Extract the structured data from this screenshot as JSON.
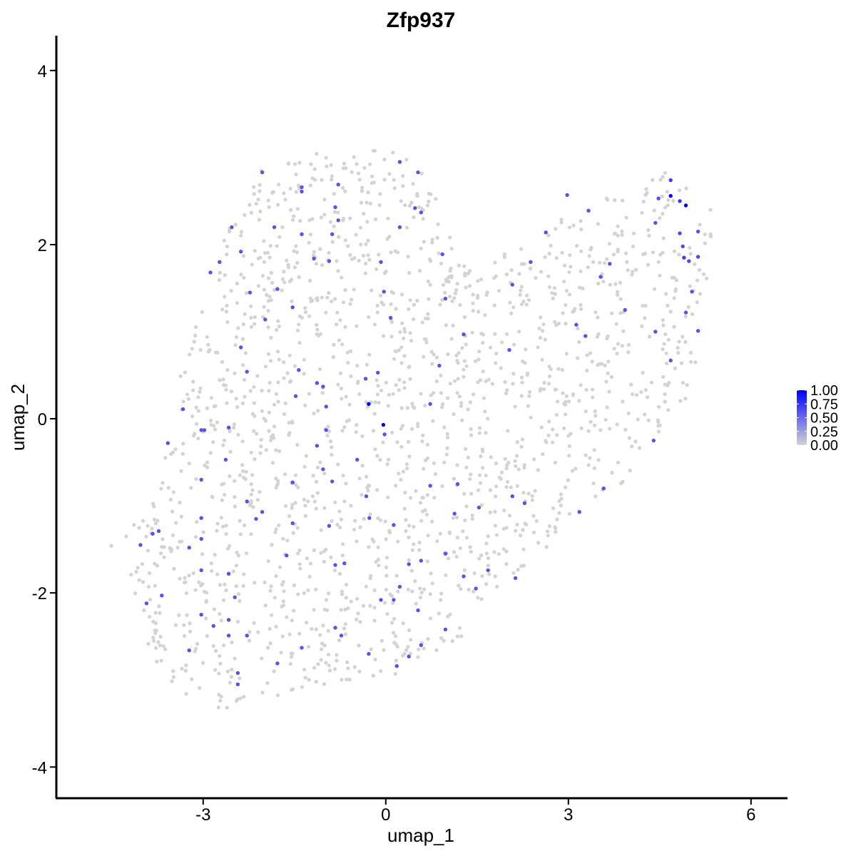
{
  "chart_data": {
    "type": "scatter",
    "title": "Zfp937",
    "xlabel": "umap_1",
    "ylabel": "umap_2",
    "xlim": [
      -5.4,
      6.6
    ],
    "ylim": [
      -4.35,
      4.4
    ],
    "x_ticks": [
      -3,
      0,
      3,
      6
    ],
    "x_tick_labels": [
      "-3",
      "0",
      "3",
      "6"
    ],
    "y_ticks": [
      -4,
      -2,
      0,
      2,
      4
    ],
    "y_tick_labels": [
      "-4",
      "-2",
      "0",
      "2",
      "4"
    ],
    "grid": false,
    "legend": {
      "placement": "right",
      "type": "colorbar",
      "min": 0,
      "max": 1,
      "ticks": [
        0,
        0.25,
        0.5,
        0.75,
        1
      ],
      "tick_labels": [
        "0.00",
        "0.25",
        "0.50",
        "0.75",
        "1.00"
      ],
      "color_low": "#d3d3d3",
      "color_high": "#0000ff"
    },
    "colors": {
      "low": "#d3d3d3",
      "high": "#0000ff"
    },
    "background_cells_estimated": 1700,
    "expressing_cells": [
      {
        "x": 4.68,
        "y": 2.56,
        "v": 1.0
      },
      {
        "x": 4.93,
        "y": 2.45,
        "v": 1.0
      },
      {
        "x": -0.28,
        "y": 0.17,
        "v": 1.0
      },
      {
        "x": -0.04,
        "y": -0.07,
        "v": 1.0
      },
      {
        "x": 4.83,
        "y": 2.5,
        "v": 0.75
      },
      {
        "x": 4.68,
        "y": 2.74,
        "v": 0.7
      },
      {
        "x": 4.9,
        "y": 1.85,
        "v": 0.7
      },
      {
        "x": 4.83,
        "y": 2.13,
        "v": 0.65
      },
      {
        "x": 4.88,
        "y": 1.98,
        "v": 0.65
      },
      {
        "x": 4.98,
        "y": 1.81,
        "v": 0.65
      },
      {
        "x": 5.13,
        "y": 1.86,
        "v": 0.65
      },
      {
        "x": 5.13,
        "y": 2.15,
        "v": 0.6
      },
      {
        "x": 4.43,
        "y": 2.25,
        "v": 0.6
      },
      {
        "x": 4.48,
        "y": 2.53,
        "v": 0.6
      },
      {
        "x": 4.43,
        "y": 1.0,
        "v": 0.6
      },
      {
        "x": 4.68,
        "y": 0.67,
        "v": 0.6
      },
      {
        "x": 4.93,
        "y": 1.22,
        "v": 0.6
      },
      {
        "x": 5.03,
        "y": 1.46,
        "v": 0.6
      },
      {
        "x": 5.13,
        "y": 1.01,
        "v": 0.6
      },
      {
        "x": 4.4,
        "y": -0.25,
        "v": 0.6
      },
      {
        "x": 3.93,
        "y": 1.25,
        "v": 0.6
      },
      {
        "x": 3.68,
        "y": 1.78,
        "v": 0.6
      },
      {
        "x": 3.53,
        "y": 1.63,
        "v": 0.6
      },
      {
        "x": 3.33,
        "y": 2.39,
        "v": 0.6
      },
      {
        "x": 3.13,
        "y": 1.08,
        "v": 0.6
      },
      {
        "x": 3.28,
        "y": 0.95,
        "v": 0.6
      },
      {
        "x": 3.58,
        "y": -0.8,
        "v": 0.6
      },
      {
        "x": 3.18,
        "y": -1.07,
        "v": 0.6
      },
      {
        "x": 2.98,
        "y": 2.57,
        "v": 0.6
      },
      {
        "x": 2.63,
        "y": 2.14,
        "v": 0.6
      },
      {
        "x": 2.38,
        "y": 1.8,
        "v": 0.6
      },
      {
        "x": 2.08,
        "y": 1.54,
        "v": 0.6
      },
      {
        "x": 2.03,
        "y": 0.79,
        "v": 0.6
      },
      {
        "x": 2.08,
        "y": -0.89,
        "v": 0.6
      },
      {
        "x": 2.28,
        "y": -0.97,
        "v": 0.6
      },
      {
        "x": 2.13,
        "y": -1.83,
        "v": 0.6
      },
      {
        "x": 1.68,
        "y": -1.74,
        "v": 0.6
      },
      {
        "x": 1.48,
        "y": -1.95,
        "v": 0.6
      },
      {
        "x": 1.53,
        "y": -1.02,
        "v": 0.6
      },
      {
        "x": 1.28,
        "y": -1.81,
        "v": 0.6
      },
      {
        "x": 1.13,
        "y": -1.09,
        "v": 0.6
      },
      {
        "x": 1.18,
        "y": -0.75,
        "v": 0.6
      },
      {
        "x": 0.98,
        "y": -1.55,
        "v": 0.6
      },
      {
        "x": 0.98,
        "y": -2.42,
        "v": 0.6
      },
      {
        "x": 0.73,
        "y": -0.77,
        "v": 0.6
      },
      {
        "x": 0.58,
        "y": -1.63,
        "v": 0.6
      },
      {
        "x": 0.53,
        "y": -2.2,
        "v": 0.6
      },
      {
        "x": 0.58,
        "y": -2.6,
        "v": 0.6
      },
      {
        "x": 0.38,
        "y": -2.73,
        "v": 0.6
      },
      {
        "x": 0.18,
        "y": -2.84,
        "v": 0.6
      },
      {
        "x": 0.38,
        "y": -1.67,
        "v": 0.6
      },
      {
        "x": 0.23,
        "y": -1.93,
        "v": 0.6
      },
      {
        "x": 0.13,
        "y": -2.08,
        "v": 0.6
      },
      {
        "x": 0.13,
        "y": -1.22,
        "v": 0.6
      },
      {
        "x": -0.27,
        "y": -1.14,
        "v": 0.6
      },
      {
        "x": -0.32,
        "y": -0.89,
        "v": 0.6
      },
      {
        "x": -0.47,
        "y": -0.47,
        "v": 0.6
      },
      {
        "x": -0.02,
        "y": -0.18,
        "v": 0.6
      },
      {
        "x": 0.73,
        "y": 0.17,
        "v": 0.6
      },
      {
        "x": 0.88,
        "y": 0.61,
        "v": 0.6
      },
      {
        "x": 1.28,
        "y": 0.97,
        "v": 0.6
      },
      {
        "x": 0.98,
        "y": 1.38,
        "v": 0.6
      },
      {
        "x": 0.93,
        "y": 1.89,
        "v": 0.6
      },
      {
        "x": 0.58,
        "y": 2.37,
        "v": 0.6
      },
      {
        "x": 0.48,
        "y": 2.42,
        "v": 0.6
      },
      {
        "x": 0.23,
        "y": 2.2,
        "v": 0.6
      },
      {
        "x": 0.53,
        "y": 2.83,
        "v": 0.6
      },
      {
        "x": 0.23,
        "y": 2.95,
        "v": 0.6
      },
      {
        "x": 0.08,
        "y": 1.16,
        "v": 0.6
      },
      {
        "x": -0.03,
        "y": 1.46,
        "v": 0.6
      },
      {
        "x": -0.08,
        "y": 1.8,
        "v": 0.6
      },
      {
        "x": -0.33,
        "y": 0.46,
        "v": 0.6
      },
      {
        "x": -0.13,
        "y": 0.53,
        "v": 0.6
      },
      {
        "x": -0.78,
        "y": 2.69,
        "v": 0.6
      },
      {
        "x": -0.83,
        "y": 2.43,
        "v": 0.6
      },
      {
        "x": -0.78,
        "y": 2.28,
        "v": 0.6
      },
      {
        "x": -0.88,
        "y": 2.12,
        "v": 0.6
      },
      {
        "x": -0.93,
        "y": 1.81,
        "v": 0.6
      },
      {
        "x": -1.18,
        "y": 1.84,
        "v": 0.6
      },
      {
        "x": -1.38,
        "y": 2.12,
        "v": 0.6
      },
      {
        "x": -1.38,
        "y": 2.61,
        "v": 0.6
      },
      {
        "x": -1.38,
        "y": 2.66,
        "v": 0.6
      },
      {
        "x": -1.83,
        "y": 2.2,
        "v": 0.6
      },
      {
        "x": -2.03,
        "y": 2.83,
        "v": 0.6
      },
      {
        "x": -1.78,
        "y": 1.49,
        "v": 0.6
      },
      {
        "x": -1.53,
        "y": 1.28,
        "v": 0.6
      },
      {
        "x": -1.98,
        "y": 1.14,
        "v": 0.6
      },
      {
        "x": -2.38,
        "y": 1.92,
        "v": 0.6
      },
      {
        "x": -2.53,
        "y": 2.2,
        "v": 0.6
      },
      {
        "x": -2.73,
        "y": 1.8,
        "v": 0.6
      },
      {
        "x": -2.88,
        "y": 1.68,
        "v": 0.6
      },
      {
        "x": -2.23,
        "y": 1.45,
        "v": 0.6
      },
      {
        "x": -2.38,
        "y": 0.82,
        "v": 0.6
      },
      {
        "x": -2.28,
        "y": 0.54,
        "v": 0.6
      },
      {
        "x": -1.43,
        "y": 0.56,
        "v": 0.6
      },
      {
        "x": -1.13,
        "y": 0.41,
        "v": 0.6
      },
      {
        "x": -1.03,
        "y": 0.37,
        "v": 0.6
      },
      {
        "x": -1.48,
        "y": 0.26,
        "v": 0.6
      },
      {
        "x": -0.98,
        "y": 0.14,
        "v": 0.6
      },
      {
        "x": -0.98,
        "y": -0.13,
        "v": 0.6
      },
      {
        "x": -1.13,
        "y": -0.31,
        "v": 0.6
      },
      {
        "x": -1.03,
        "y": -0.58,
        "v": 0.6
      },
      {
        "x": -0.88,
        "y": -0.72,
        "v": 0.6
      },
      {
        "x": -0.93,
        "y": -1.23,
        "v": 0.6
      },
      {
        "x": -0.83,
        "y": -1.68,
        "v": 0.6
      },
      {
        "x": -0.68,
        "y": -1.66,
        "v": 0.6
      },
      {
        "x": -0.83,
        "y": -2.4,
        "v": 0.6
      },
      {
        "x": -0.73,
        "y": -2.49,
        "v": 0.6
      },
      {
        "x": -0.28,
        "y": -2.7,
        "v": 0.6
      },
      {
        "x": -0.08,
        "y": -2.08,
        "v": 0.6
      },
      {
        "x": -1.53,
        "y": -0.73,
        "v": 0.6
      },
      {
        "x": -1.53,
        "y": -1.2,
        "v": 0.6
      },
      {
        "x": -1.63,
        "y": -1.57,
        "v": 0.6
      },
      {
        "x": -2.03,
        "y": -1.07,
        "v": 0.6
      },
      {
        "x": -2.13,
        "y": -1.15,
        "v": 0.6
      },
      {
        "x": -2.28,
        "y": -0.95,
        "v": 0.6
      },
      {
        "x": -2.63,
        "y": -0.47,
        "v": 0.6
      },
      {
        "x": -2.58,
        "y": -0.1,
        "v": 0.6
      },
      {
        "x": -3.03,
        "y": -0.13,
        "v": 0.6
      },
      {
        "x": -2.98,
        "y": -0.13,
        "v": 0.6
      },
      {
        "x": -3.33,
        "y": 0.11,
        "v": 0.6
      },
      {
        "x": -3.58,
        "y": -0.28,
        "v": 0.6
      },
      {
        "x": -3.03,
        "y": -0.7,
        "v": 0.6
      },
      {
        "x": -3.03,
        "y": -1.14,
        "v": 0.6
      },
      {
        "x": -3.03,
        "y": -1.38,
        "v": 0.6
      },
      {
        "x": -3.23,
        "y": -1.48,
        "v": 0.6
      },
      {
        "x": -3.03,
        "y": -1.74,
        "v": 0.6
      },
      {
        "x": -2.58,
        "y": -1.78,
        "v": 0.6
      },
      {
        "x": -2.48,
        "y": -2.05,
        "v": 0.6
      },
      {
        "x": -2.58,
        "y": -2.31,
        "v": 0.6
      },
      {
        "x": -2.58,
        "y": -2.49,
        "v": 0.6
      },
      {
        "x": -2.28,
        "y": -2.49,
        "v": 0.6
      },
      {
        "x": -2.83,
        "y": -2.38,
        "v": 0.6
      },
      {
        "x": -3.03,
        "y": -2.25,
        "v": 0.6
      },
      {
        "x": -3.23,
        "y": -2.66,
        "v": 0.6
      },
      {
        "x": -2.43,
        "y": -2.92,
        "v": 0.6
      },
      {
        "x": -2.43,
        "y": -3.05,
        "v": 0.6
      },
      {
        "x": -1.78,
        "y": -2.81,
        "v": 0.6
      },
      {
        "x": -1.38,
        "y": -2.63,
        "v": 0.6
      },
      {
        "x": -3.68,
        "y": -2.03,
        "v": 0.6
      },
      {
        "x": -3.93,
        "y": -2.12,
        "v": 0.6
      },
      {
        "x": -4.03,
        "y": -1.45,
        "v": 0.6
      },
      {
        "x": -3.83,
        "y": -1.32,
        "v": 0.6
      },
      {
        "x": -3.73,
        "y": -1.29,
        "v": 0.6
      }
    ]
  }
}
